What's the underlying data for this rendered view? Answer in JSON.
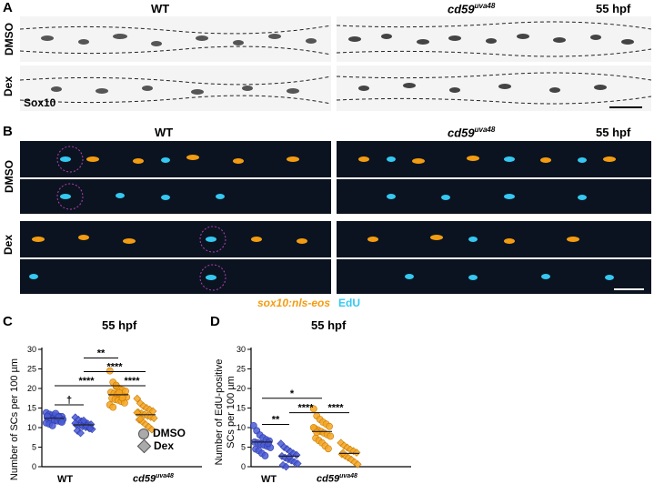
{
  "panelA": {
    "letter": "A",
    "col_wt": "WT",
    "col_mut": "cd59",
    "col_mut_sup": "uva48",
    "timepoint": "55 hpf",
    "row_dmso": "DMSO",
    "row_dex": "Dex",
    "stain": "Sox10"
  },
  "panelB": {
    "letter": "B",
    "col_wt": "WT",
    "col_mut": "cd59",
    "col_mut_sup": "uva48",
    "timepoint": "55 hpf",
    "row_dmso": "DMSO",
    "row_dex": "Dex",
    "legend_eos": "sox10:nls-eos",
    "legend_edu": "EdU",
    "color_eos": "#f39c12",
    "color_edu": "#35c8f0"
  },
  "panelC": {
    "letter": "C",
    "title": "55 hpf",
    "ylabel": "Number of SCs per 100 µm",
    "legend_dmso": "DMSO",
    "legend_dex": "Dex",
    "sig": [
      "**",
      "****",
      "****",
      "****",
      "†"
    ],
    "xticks": [
      "WT",
      "cd59",
      "uva48"
    ]
  },
  "panelD": {
    "letter": "D",
    "title": "55 hpf",
    "ylabel_line1": "Number of EdU-positive",
    "ylabel_line2": "SCs per 100 µm",
    "sig": [
      "*",
      "**",
      "****",
      "****"
    ],
    "xticks": [
      "WT",
      "cd59",
      "uva48"
    ]
  },
  "chart_data": [
    {
      "type": "scatter",
      "title": "55 hpf",
      "ylabel": "Number of SCs per 100 µm",
      "ylim": [
        0,
        30
      ],
      "yticks": [
        0,
        5,
        10,
        15,
        20,
        25,
        30
      ],
      "categories": [
        "WT DMSO",
        "WT Dex",
        "cd59uva48 DMSO",
        "cd59uva48 Dex"
      ],
      "series": [
        {
          "name": "DMSO",
          "group": "WT",
          "color": "#4a5bd6",
          "values": [
            13.8,
            13.4,
            13.2,
            13.0,
            12.9,
            12.8,
            12.6,
            12.5,
            12.4,
            12.3,
            12.2,
            12.1,
            12.0,
            11.9,
            11.8,
            11.7,
            11.5,
            11.2,
            10.9,
            10.5,
            13.6,
            12.7,
            11.4,
            12.9
          ]
        },
        {
          "name": "Dex",
          "group": "WT",
          "color": "#4a5bd6",
          "values": [
            12.6,
            12.0,
            11.6,
            11.3,
            11.0,
            10.8,
            10.7,
            10.5,
            10.3,
            10.1,
            9.9,
            9.6,
            9.2,
            8.6,
            11.8,
            10.4,
            9.8,
            11.1
          ]
        },
        {
          "name": "DMSO",
          "group": "cd59uva48",
          "color": "#f5a623",
          "values": [
            24.5,
            21.6,
            20.5,
            20.0,
            19.6,
            19.3,
            19.0,
            18.7,
            18.5,
            18.2,
            18.0,
            17.8,
            17.5,
            17.2,
            17.0,
            16.7,
            16.3,
            15.8,
            15.2,
            20.8,
            18.9,
            17.6
          ]
        },
        {
          "name": "Dex",
          "group": "cd59uva48",
          "color": "#f5a623",
          "values": [
            17.4,
            16.2,
            15.5,
            15.0,
            14.6,
            14.2,
            13.9,
            13.6,
            13.3,
            13.0,
            12.7,
            12.4,
            12.0,
            11.5,
            10.8,
            10.2,
            9.5,
            13.8,
            12.2
          ]
        }
      ],
      "means": [
        12.4,
        10.7,
        18.4,
        13.3
      ]
    },
    {
      "type": "scatter",
      "title": "55 hpf",
      "ylabel": "Number of EdU-positive SCs per 100 µm",
      "ylim": [
        0,
        30
      ],
      "yticks": [
        0,
        5,
        10,
        15,
        20,
        25,
        30
      ],
      "categories": [
        "WT DMSO",
        "WT Dex",
        "cd59uva48 DMSO",
        "cd59uva48 Dex"
      ],
      "series": [
        {
          "name": "DMSO",
          "group": "WT",
          "color": "#4a5bd6",
          "values": [
            10.5,
            9.2,
            8.1,
            7.4,
            6.9,
            6.6,
            6.3,
            6.1,
            5.8,
            5.5,
            5.2,
            4.9,
            4.5,
            4.1,
            3.4,
            2.8,
            6.0
          ]
        },
        {
          "name": "Dex",
          "group": "WT",
          "color": "#4a5bd6",
          "values": [
            5.9,
            5.0,
            4.5,
            3.9,
            3.4,
            3.0,
            2.7,
            2.3,
            1.9,
            1.6,
            1.2,
            0.8,
            0.4,
            0.0,
            2.5
          ]
        },
        {
          "name": "DMSO",
          "group": "cd59uva48",
          "color": "#f5a623",
          "values": [
            14.8,
            13.0,
            12.1,
            11.4,
            10.9,
            10.3,
            9.8,
            9.4,
            9.0,
            8.6,
            8.2,
            7.8,
            7.3,
            6.7,
            6.1,
            5.3,
            4.6,
            10.0,
            8.8
          ]
        },
        {
          "name": "Dex",
          "group": "cd59uva48",
          "color": "#f5a623",
          "values": [
            6.1,
            5.4,
            4.9,
            4.4,
            4.0,
            3.6,
            3.2,
            2.8,
            2.3,
            1.8,
            1.2,
            0.6,
            3.5
          ]
        }
      ],
      "means": [
        6.3,
        2.7,
        9.0,
        3.4
      ]
    }
  ]
}
